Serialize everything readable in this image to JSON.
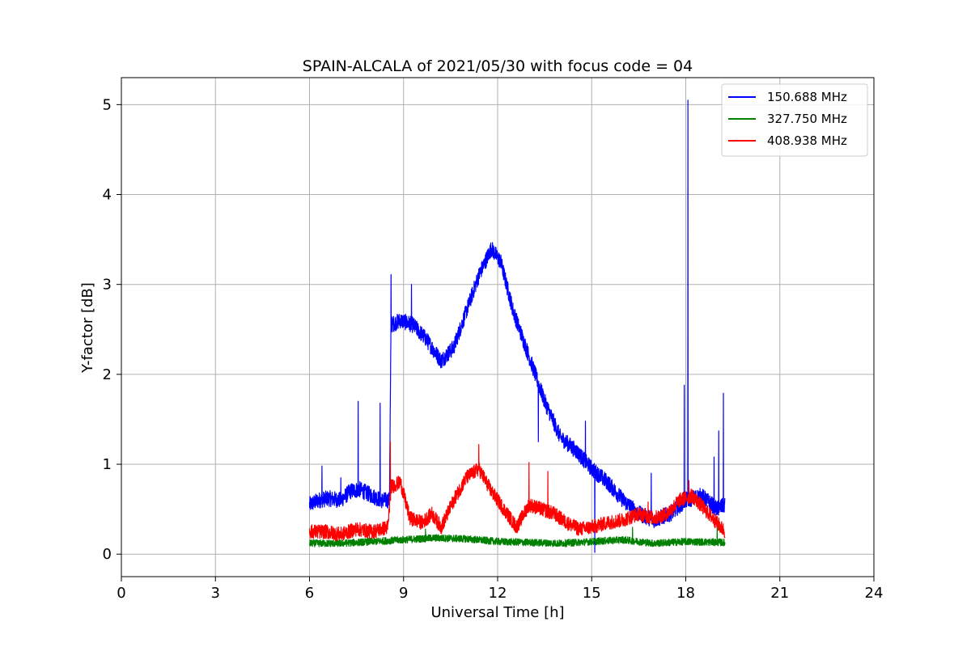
{
  "chart_data": {
    "type": "line",
    "title": "SPAIN-ALCALA of 2021/05/30 with focus code = 04",
    "xlabel": "Universal Time [h]",
    "ylabel": "Y-factor [dB]",
    "xlim": [
      0,
      24
    ],
    "ylim": [
      -0.25,
      5.3
    ],
    "xticks": [
      0,
      3,
      6,
      9,
      12,
      15,
      18,
      21,
      24
    ],
    "yticks": [
      0,
      1,
      2,
      3,
      4,
      5
    ],
    "grid": true,
    "legend_position": "top-right",
    "series": [
      {
        "name": "150.688 MHz",
        "color": "#0000ff",
        "noise": 0.09,
        "points": [
          [
            6.0,
            0.55
          ],
          [
            6.3,
            0.6
          ],
          [
            6.6,
            0.62
          ],
          [
            7.0,
            0.6
          ],
          [
            7.3,
            0.7
          ],
          [
            7.6,
            0.72
          ],
          [
            8.0,
            0.65
          ],
          [
            8.3,
            0.6
          ],
          [
            8.55,
            0.6
          ],
          [
            8.6,
            2.55
          ],
          [
            8.9,
            2.6
          ],
          [
            9.3,
            2.55
          ],
          [
            9.7,
            2.4
          ],
          [
            10.2,
            2.15
          ],
          [
            10.6,
            2.3
          ],
          [
            11.0,
            2.7
          ],
          [
            11.4,
            3.1
          ],
          [
            11.8,
            3.4
          ],
          [
            12.1,
            3.25
          ],
          [
            12.5,
            2.7
          ],
          [
            13.0,
            2.2
          ],
          [
            13.5,
            1.7
          ],
          [
            14.0,
            1.3
          ],
          [
            14.5,
            1.15
          ],
          [
            15.0,
            0.95
          ],
          [
            15.5,
            0.8
          ],
          [
            16.0,
            0.6
          ],
          [
            16.5,
            0.45
          ],
          [
            17.0,
            0.38
          ],
          [
            17.5,
            0.45
          ],
          [
            18.0,
            0.6
          ],
          [
            18.5,
            0.65
          ],
          [
            19.0,
            0.5
          ],
          [
            19.25,
            0.55
          ]
        ],
        "spikes": [
          [
            6.4,
            0.98
          ],
          [
            7.0,
            0.85
          ],
          [
            7.55,
            1.7
          ],
          [
            8.25,
            1.68
          ],
          [
            8.6,
            3.11
          ],
          [
            9.25,
            3.0
          ],
          [
            13.3,
            1.25
          ],
          [
            14.8,
            1.48
          ],
          [
            15.1,
            0.02
          ],
          [
            16.9,
            0.9
          ],
          [
            17.95,
            1.88
          ],
          [
            18.07,
            5.05
          ],
          [
            18.9,
            1.08
          ],
          [
            19.05,
            1.37
          ],
          [
            19.2,
            1.79
          ]
        ]
      },
      {
        "name": "327.750 MHz",
        "color": "#008000",
        "noise": 0.04,
        "points": [
          [
            6.0,
            0.12
          ],
          [
            7.0,
            0.12
          ],
          [
            8.0,
            0.14
          ],
          [
            9.0,
            0.16
          ],
          [
            10.0,
            0.18
          ],
          [
            11.0,
            0.17
          ],
          [
            12.0,
            0.14
          ],
          [
            13.0,
            0.13
          ],
          [
            14.0,
            0.12
          ],
          [
            15.0,
            0.14
          ],
          [
            16.0,
            0.16
          ],
          [
            17.0,
            0.12
          ],
          [
            18.0,
            0.14
          ],
          [
            19.25,
            0.13
          ]
        ],
        "spikes": [
          [
            9.7,
            0.28
          ],
          [
            16.3,
            0.3
          ],
          [
            19.0,
            0.31
          ]
        ]
      },
      {
        "name": "408.938 MHz",
        "color": "#ff0000",
        "noise": 0.08,
        "points": [
          [
            6.0,
            0.25
          ],
          [
            6.5,
            0.25
          ],
          [
            7.0,
            0.22
          ],
          [
            7.5,
            0.28
          ],
          [
            8.0,
            0.25
          ],
          [
            8.5,
            0.3
          ],
          [
            8.6,
            0.75
          ],
          [
            8.9,
            0.8
          ],
          [
            9.2,
            0.4
          ],
          [
            9.6,
            0.35
          ],
          [
            9.9,
            0.45
          ],
          [
            10.2,
            0.3
          ],
          [
            10.6,
            0.6
          ],
          [
            11.0,
            0.85
          ],
          [
            11.4,
            0.95
          ],
          [
            11.8,
            0.7
          ],
          [
            12.2,
            0.5
          ],
          [
            12.6,
            0.3
          ],
          [
            13.0,
            0.55
          ],
          [
            13.4,
            0.5
          ],
          [
            13.8,
            0.45
          ],
          [
            14.2,
            0.35
          ],
          [
            14.6,
            0.28
          ],
          [
            15.0,
            0.3
          ],
          [
            15.5,
            0.35
          ],
          [
            16.0,
            0.38
          ],
          [
            16.5,
            0.45
          ],
          [
            17.0,
            0.4
          ],
          [
            17.4,
            0.45
          ],
          [
            17.8,
            0.6
          ],
          [
            18.2,
            0.65
          ],
          [
            18.6,
            0.5
          ],
          [
            19.25,
            0.25
          ]
        ],
        "spikes": [
          [
            8.58,
            1.25
          ],
          [
            11.4,
            1.22
          ],
          [
            13.0,
            1.02
          ],
          [
            13.6,
            0.92
          ],
          [
            16.8,
            0.58
          ],
          [
            18.1,
            0.82
          ]
        ]
      }
    ]
  }
}
